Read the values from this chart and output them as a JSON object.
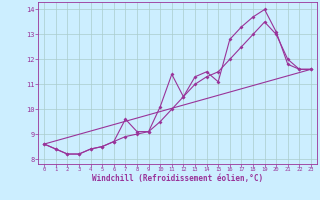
{
  "xlabel": "Windchill (Refroidissement éolien,°C)",
  "background_color": "#cceeff",
  "grid_color": "#aacccc",
  "line_color": "#993399",
  "xlim": [
    -0.5,
    23.5
  ],
  "ylim": [
    7.8,
    14.3
  ],
  "xticks": [
    0,
    1,
    2,
    3,
    4,
    5,
    6,
    7,
    8,
    9,
    10,
    11,
    12,
    13,
    14,
    15,
    16,
    17,
    18,
    19,
    20,
    21,
    22,
    23
  ],
  "yticks": [
    8,
    9,
    10,
    11,
    12,
    13,
    14
  ],
  "series1_x": [
    0,
    1,
    2,
    3,
    4,
    5,
    6,
    7,
    8,
    9,
    10,
    11,
    12,
    13,
    14,
    15,
    16,
    17,
    18,
    19,
    20,
    21,
    22,
    23
  ],
  "series1_y": [
    8.6,
    8.4,
    8.2,
    8.2,
    8.4,
    8.5,
    8.7,
    9.6,
    9.1,
    9.1,
    10.1,
    11.4,
    10.5,
    11.3,
    11.5,
    11.1,
    12.8,
    13.3,
    13.7,
    14.0,
    13.1,
    11.8,
    11.6,
    11.6
  ],
  "series2_x": [
    0,
    1,
    2,
    3,
    4,
    5,
    6,
    7,
    8,
    9,
    10,
    11,
    12,
    13,
    14,
    15,
    16,
    17,
    18,
    19,
    20,
    21,
    22,
    23
  ],
  "series2_y": [
    8.6,
    8.4,
    8.2,
    8.2,
    8.4,
    8.5,
    8.7,
    8.9,
    9.0,
    9.1,
    9.5,
    10.0,
    10.5,
    11.0,
    11.3,
    11.5,
    12.0,
    12.5,
    13.0,
    13.5,
    13.0,
    12.0,
    11.6,
    11.6
  ],
  "series3_x": [
    0,
    23
  ],
  "series3_y": [
    8.6,
    11.6
  ]
}
